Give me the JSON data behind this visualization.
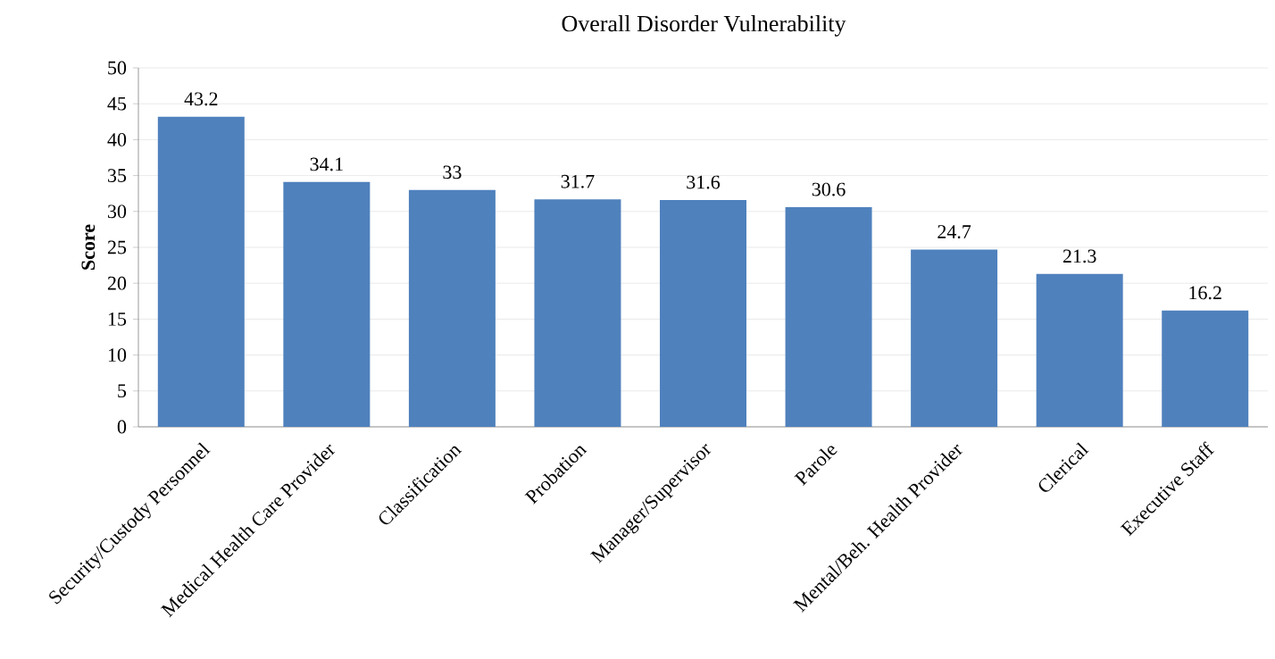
{
  "chart_data": {
    "type": "bar",
    "title": "Overall Disorder Vulnerability",
    "ylabel": "Score",
    "categories": [
      "Security/Custody Personnel",
      "Medical Health Care Provider",
      "Classification",
      "Probation",
      "Manager/Supervisor",
      "Parole",
      "Mental/Beh. Health Provider",
      "Clerical",
      "Executive Staff"
    ],
    "values": [
      43.2,
      34.1,
      33,
      31.7,
      31.6,
      30.6,
      24.7,
      21.3,
      16.2
    ],
    "color": "#4f81bd",
    "ylim": [
      0,
      50
    ],
    "yticks": [
      0,
      5,
      10,
      15,
      20,
      25,
      30,
      35,
      40,
      45,
      50
    ],
    "grid": "y",
    "data_labels": true
  }
}
